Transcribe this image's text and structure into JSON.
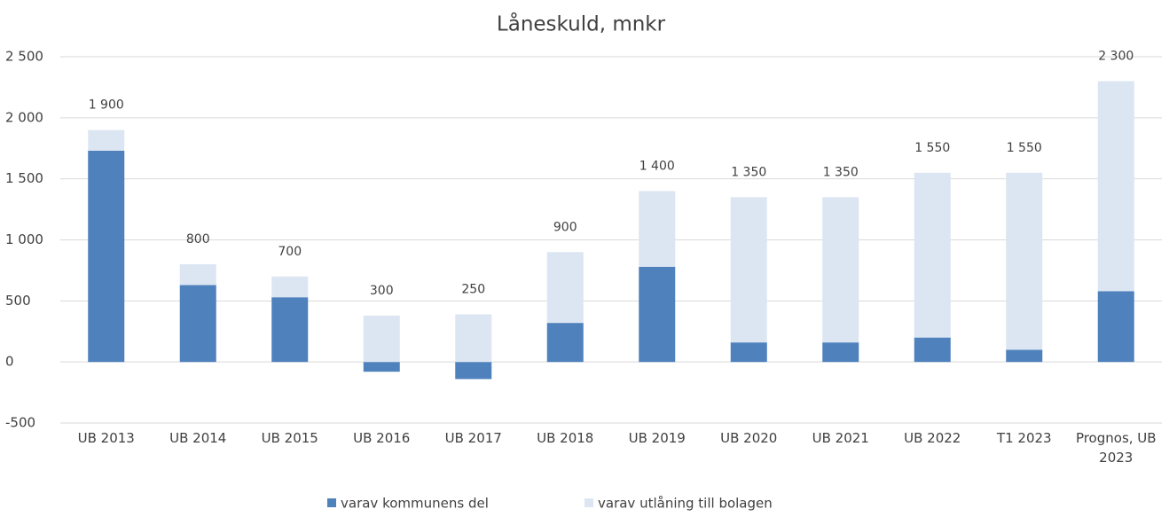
{
  "chart_data": {
    "type": "bar",
    "stacked": true,
    "title": "Låneskuld, mnkr",
    "categories": [
      "UB 2013",
      "UB 2014",
      "UB 2015",
      "UB 2016",
      "UB 2017",
      "UB 2018",
      "UB 2019",
      "UB 2020",
      "UB 2021",
      "UB 2022",
      "T1 2023",
      "Prognos, UB 2023"
    ],
    "series": [
      {
        "name": "varav kommunens del",
        "color": "#4f81bd",
        "values": [
          1730,
          630,
          530,
          -80,
          -140,
          320,
          780,
          160,
          160,
          200,
          100,
          580
        ]
      },
      {
        "name": "varav utlåning till bolagen",
        "color": "#dce6f2",
        "values": [
          170,
          170,
          170,
          380,
          390,
          580,
          620,
          1190,
          1190,
          1350,
          1450,
          1720
        ]
      }
    ],
    "totals": {
      "values": [
        1900,
        800,
        700,
        300,
        250,
        900,
        1400,
        1350,
        1350,
        1550,
        1550,
        2300
      ],
      "value_labels": [
        "1 900",
        "800",
        "700",
        "300",
        "250",
        "900",
        "1 400",
        "1 350",
        "1 350",
        "1 550",
        "1 550",
        "2 300"
      ]
    },
    "ylim": [
      -500,
      2500
    ],
    "yticks": [
      -500,
      0,
      500,
      {
        "value": 1000,
        "label": "1 000"
      },
      {
        "value": 1500,
        "label": "1 500"
      },
      {
        "value": 2000,
        "label": "2 000"
      },
      {
        "value": 2500,
        "label": "2 500"
      }
    ],
    "grid": true,
    "legend": "bottom"
  }
}
